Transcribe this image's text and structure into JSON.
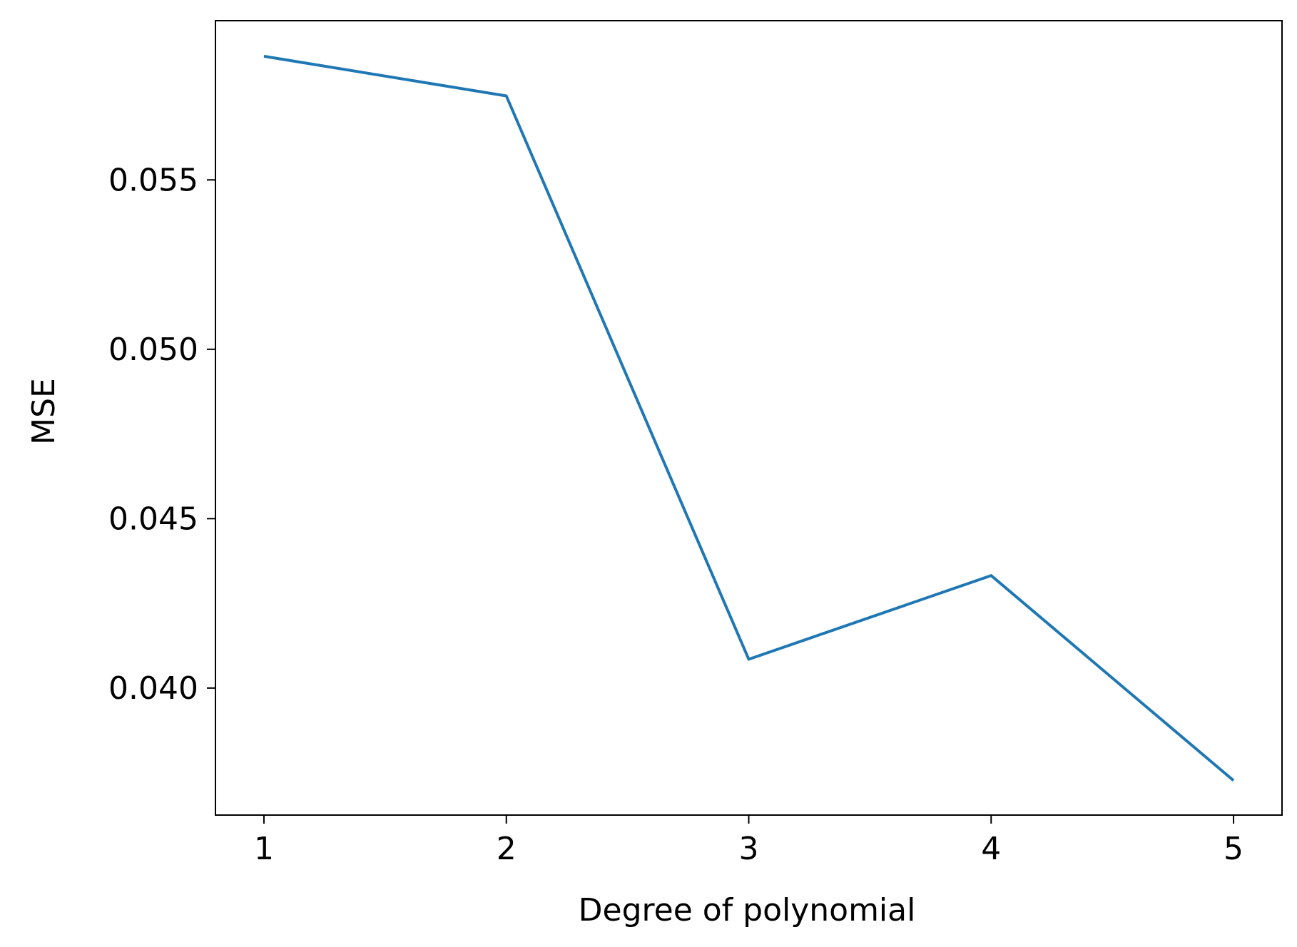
{
  "chart_data": {
    "type": "line",
    "title": "",
    "xlabel": "Degree of polynomial",
    "ylabel": "MSE",
    "x": [
      1,
      2,
      3,
      4,
      5
    ],
    "series": [
      {
        "values": [
          0.05865,
          0.05748,
          0.04085,
          0.04332,
          0.03727
        ],
        "color": "#1f77b4"
      }
    ],
    "xlim": [
      0.8,
      5.2
    ],
    "ylim": [
      0.03625,
      0.0597
    ],
    "x_ticks": [
      {
        "value": 1,
        "label": "1"
      },
      {
        "value": 2,
        "label": "2"
      },
      {
        "value": 3,
        "label": "3"
      },
      {
        "value": 4,
        "label": "4"
      },
      {
        "value": 5,
        "label": "5"
      }
    ],
    "y_ticks": [
      {
        "value": 0.04,
        "label": "0.040"
      },
      {
        "value": 0.045,
        "label": "0.045"
      },
      {
        "value": 0.05,
        "label": "0.050"
      },
      {
        "value": 0.055,
        "label": "0.055"
      }
    ],
    "grid": false,
    "legend": "none"
  }
}
